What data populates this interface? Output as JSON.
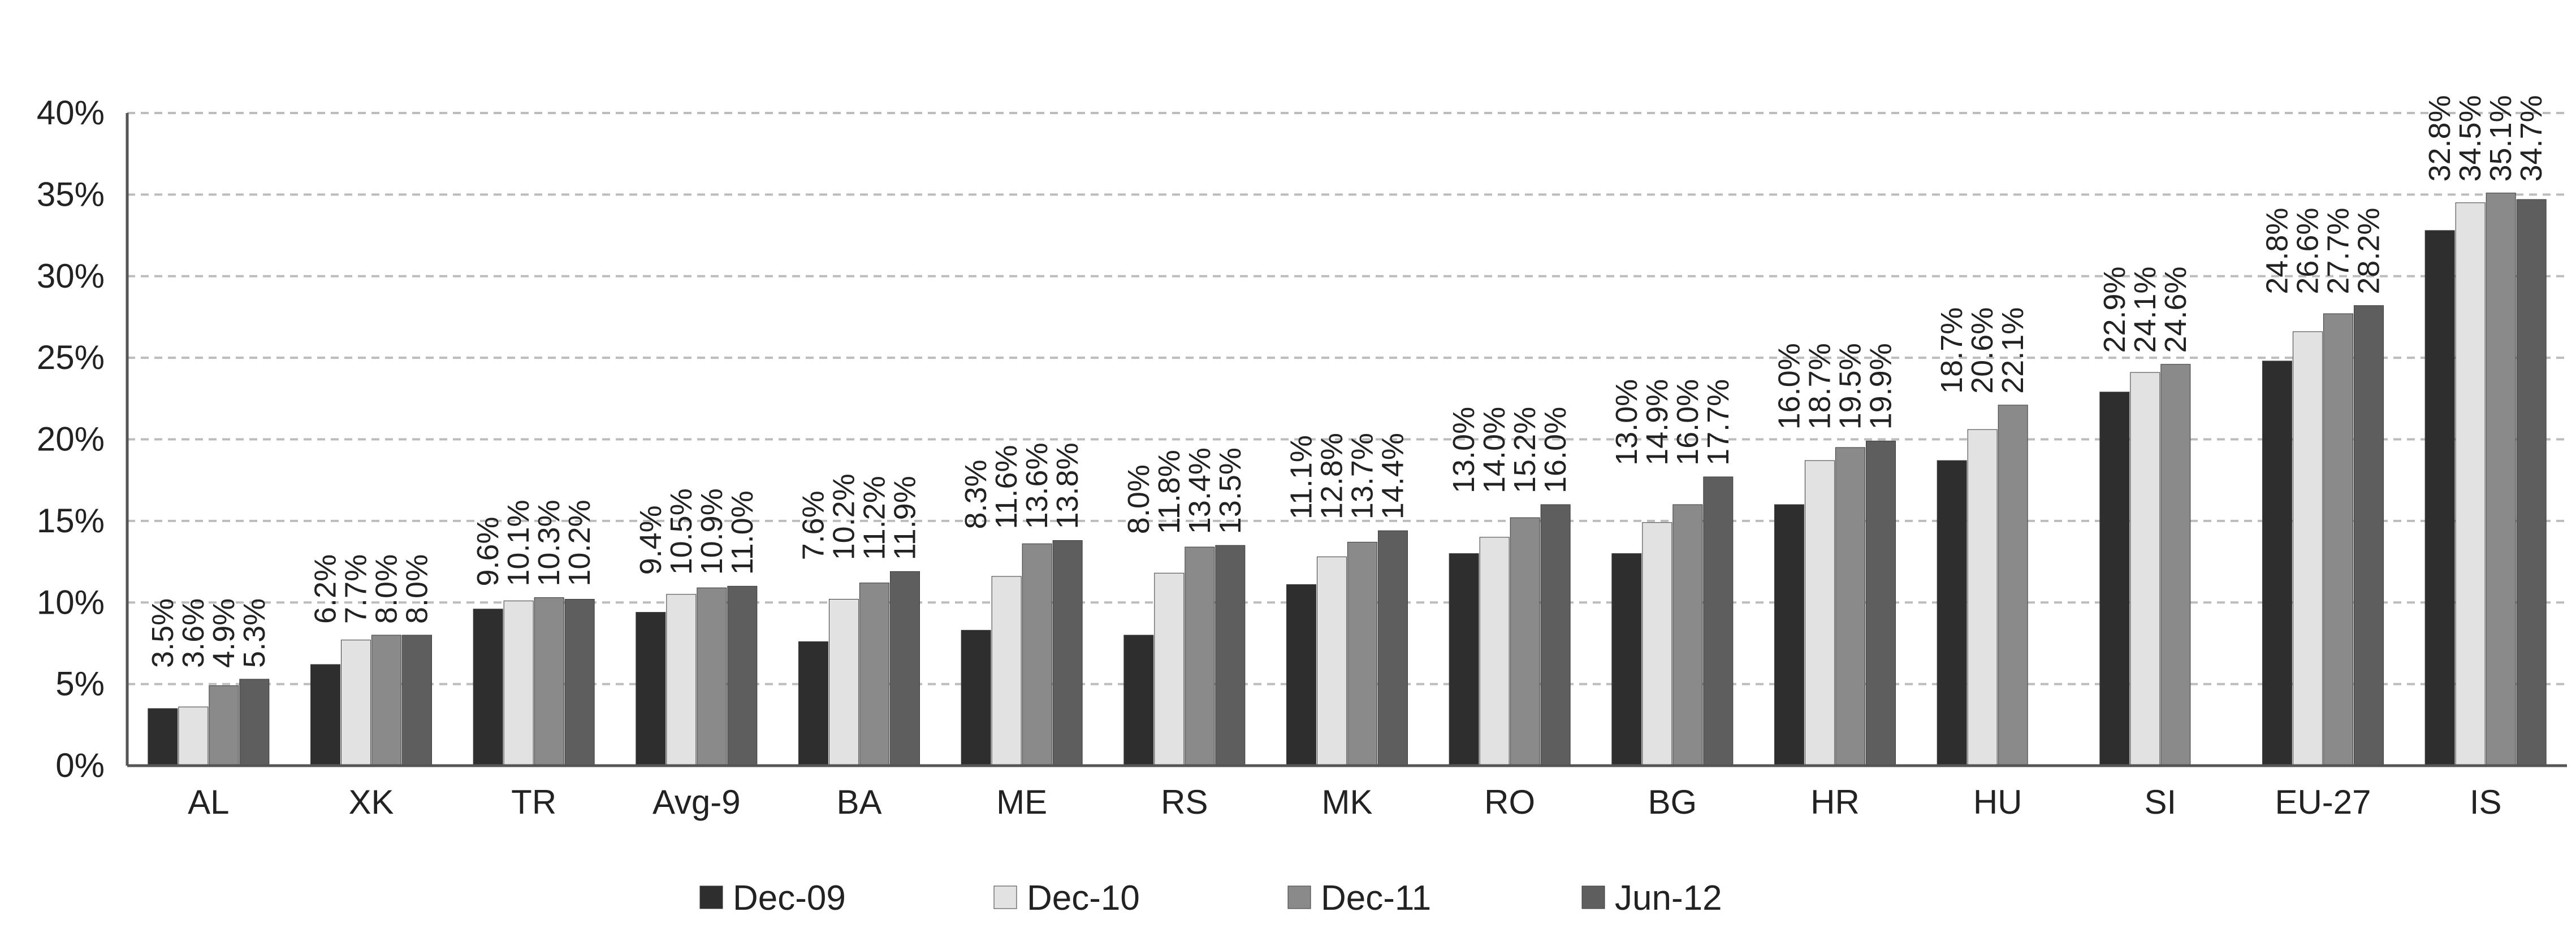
{
  "chart_data": {
    "type": "bar",
    "categories": [
      "AL",
      "XK",
      "TR",
      "Avg-9",
      "BA",
      "ME",
      "RS",
      "MK",
      "RO",
      "BG",
      "HR",
      "HU",
      "SI",
      "EU-27",
      "IS"
    ],
    "series": [
      {
        "name": "Dec-09",
        "color": "#2e2e2e",
        "values": [
          3.5,
          6.2,
          9.6,
          9.4,
          7.6,
          8.3,
          8.0,
          11.1,
          13.0,
          13.0,
          16.0,
          18.7,
          22.9,
          24.8,
          32.8
        ]
      },
      {
        "name": "Dec-10",
        "color": "#e2e2e2",
        "values": [
          3.6,
          7.7,
          10.1,
          10.5,
          10.2,
          11.6,
          11.8,
          12.8,
          14.0,
          14.9,
          18.7,
          20.6,
          24.1,
          26.6,
          34.5
        ]
      },
      {
        "name": "Dec-11",
        "color": "#8a8a8a",
        "values": [
          4.9,
          8.0,
          10.3,
          10.9,
          11.2,
          13.6,
          13.4,
          13.7,
          15.2,
          16.0,
          19.5,
          22.1,
          24.6,
          27.7,
          35.1
        ]
      },
      {
        "name": "Jun-12",
        "color": "#5e5e5e",
        "values": [
          5.3,
          8.0,
          10.2,
          11.0,
          11.9,
          13.8,
          13.5,
          14.4,
          16.0,
          17.7,
          19.9,
          null,
          null,
          28.2,
          34.7
        ]
      }
    ],
    "data_labels": [
      [
        "3.5%",
        "3.6%",
        "4.9%",
        "5.3%"
      ],
      [
        "6.2%",
        "7.7%",
        "8.0%",
        "8.0%"
      ],
      [
        "9.6%",
        "10.1%",
        "10.3%",
        "10.2%"
      ],
      [
        "9.4%",
        "10.5%",
        "10.9%",
        "11.0%"
      ],
      [
        "7.6%",
        "10.2%",
        "11.2%",
        "11.9%"
      ],
      [
        "8.3%",
        "11.6%",
        "13.6%",
        "13.8%"
      ],
      [
        "8.0%",
        "11.8%",
        "13.4%",
        "13.5%"
      ],
      [
        "11.1%",
        "12.8%",
        "13.7%",
        "14.4%"
      ],
      [
        "13.0%",
        "14.0%",
        "15.2%",
        "16.0%"
      ],
      [
        "13.0%",
        "14.9%",
        "16.0%",
        "17.7%"
      ],
      [
        "16.0%",
        "18.7%",
        "19.5%",
        "19.9%"
      ],
      [
        "18.7%",
        "20.6%",
        "22.1%",
        ""
      ],
      [
        "22.9%",
        "24.1%",
        "24.6%",
        ""
      ],
      [
        "24.8%",
        "26.6%",
        "27.7%",
        "28.2%"
      ],
      [
        "32.8%",
        "34.5%",
        "35.1%",
        "34.7%"
      ]
    ],
    "y_ticks": [
      "0%",
      "5%",
      "10%",
      "15%",
      "20%",
      "25%",
      "30%",
      "35%",
      "40%"
    ],
    "ylim": [
      0,
      40
    ],
    "grid": true,
    "legend_position": "bottom-center",
    "title": "",
    "xlabel": "",
    "ylabel": ""
  }
}
